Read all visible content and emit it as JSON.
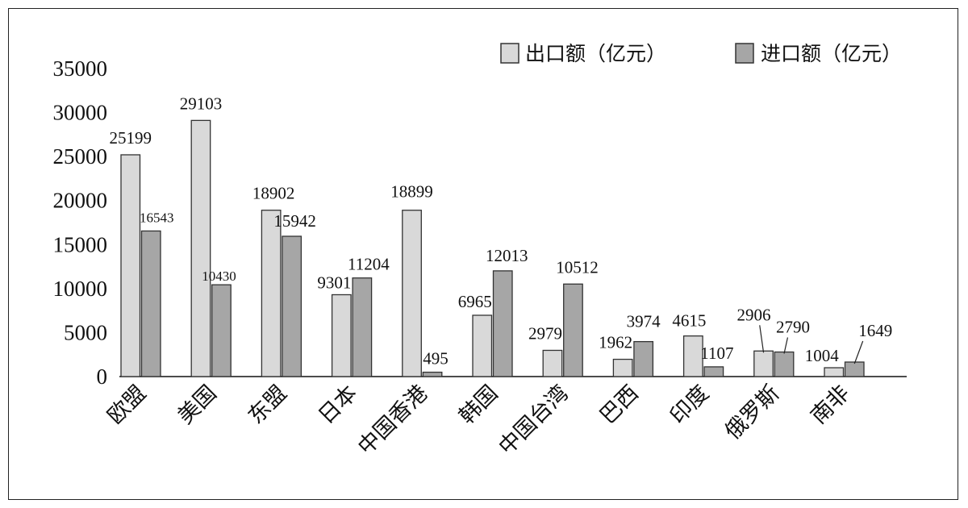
{
  "chart_data": {
    "type": "bar",
    "categories": [
      "欧盟",
      "美国",
      "东盟",
      "日本",
      "中国香港",
      "韩国",
      "中国台湾",
      "巴西",
      "印度",
      "俄罗斯",
      "南非"
    ],
    "series": [
      {
        "name": "出口额（亿元）",
        "color": "#d9d9d9",
        "values": [
          25199,
          29103,
          18902,
          9301,
          18899,
          6965,
          2979,
          1962,
          4615,
          2906,
          1004
        ]
      },
      {
        "name": "进口额（亿元）",
        "color": "#a6a6a6",
        "values": [
          16543,
          10430,
          15942,
          11204,
          495,
          12013,
          10512,
          3974,
          1107,
          2790,
          1649
        ]
      }
    ],
    "y_ticks": [
      "0",
      "5000",
      "10000",
      "15000",
      "20000",
      "25000",
      "30000",
      "35000"
    ],
    "ylim": [
      0,
      35000
    ],
    "xlabel": "",
    "ylabel": "",
    "legend_position": "top-right",
    "grid": false
  }
}
